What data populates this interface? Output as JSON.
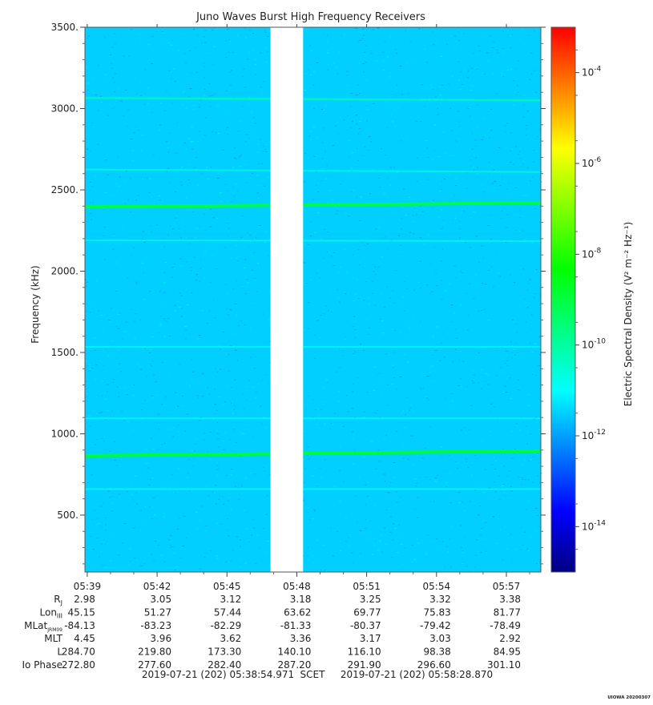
{
  "chart_data": {
    "type": "heatmap",
    "title": "Juno Waves Burst High Frequency Receivers",
    "ylabel": "Frequency (kHz)",
    "colorbar_label": "Electric Spectral Density (V² m⁻² Hz⁻¹)",
    "ylim": [
      150,
      3500
    ],
    "yticks": [
      500,
      1000,
      1500,
      2000,
      2500,
      3000,
      3500
    ],
    "ytick_labels": [
      "500.",
      "1000.",
      "1500.",
      "2000.",
      "2500.",
      "3000.",
      "3500."
    ],
    "xlim_minutes": [
      38.9,
      58.48
    ],
    "xticks_minutes": [
      39,
      42,
      45,
      48,
      51,
      54,
      57
    ],
    "data_gap_minutes": [
      46.87,
      48.27
    ],
    "background_level_log10": -11.5,
    "emission_lines": [
      {
        "freq_start": 865,
        "freq_end": 895,
        "log10_level": -8.8,
        "strength": "strong"
      },
      {
        "freq_start": 2395,
        "freq_end": 2420,
        "log10_level": -9.0,
        "strength": "strong"
      },
      {
        "freq_start": 3065,
        "freq_end": 3050,
        "log10_level": -10.2,
        "strength": "medium"
      },
      {
        "freq_start": 2625,
        "freq_end": 2610,
        "log10_level": -10.6,
        "strength": "weak"
      },
      {
        "freq_start": 2190,
        "freq_end": 2185,
        "log10_level": -10.8,
        "strength": "weak"
      },
      {
        "freq_start": 1535,
        "freq_end": 1535,
        "log10_level": -10.8,
        "strength": "weak"
      },
      {
        "freq_start": 1095,
        "freq_end": 1095,
        "log10_level": -11.0,
        "strength": "weak"
      },
      {
        "freq_start": 660,
        "freq_end": 660,
        "log10_level": -11.0,
        "strength": "weak"
      }
    ],
    "colorbar": {
      "log10_min": -15,
      "log10_max": -3,
      "ticks": [
        {
          "base": "10",
          "exp": "-4",
          "value": -4
        },
        {
          "base": "10",
          "exp": "-6",
          "value": -6
        },
        {
          "base": "10",
          "exp": "-8",
          "value": -8
        },
        {
          "base": "10",
          "exp": "-10",
          "value": -10
        },
        {
          "base": "10",
          "exp": "-12",
          "value": -12
        },
        {
          "base": "10",
          "exp": "-14",
          "value": -14
        }
      ],
      "colors": [
        "#000080",
        "#0000ff",
        "#0080ff",
        "#00ffff",
        "#00ff80",
        "#00ff00",
        "#80ff00",
        "#ffff00",
        "#ff8000",
        "#ff0000"
      ]
    },
    "ephemeris": {
      "time_labels": [
        "05:39",
        "05:42",
        "05:45",
        "05:48",
        "05:51",
        "05:54",
        "05:57"
      ],
      "rows": [
        {
          "label": "R",
          "sub": "J",
          "values": [
            "2.98",
            "3.05",
            "3.12",
            "3.18",
            "3.25",
            "3.32",
            "3.38"
          ]
        },
        {
          "label": "Lon",
          "sub": "III",
          "values": [
            "45.15",
            "51.27",
            "57.44",
            "63.62",
            "69.77",
            "75.83",
            "81.77"
          ]
        },
        {
          "label": "MLat",
          "sub": "JRM09",
          "values": [
            "-84.13",
            "-83.23",
            "-82.29",
            "-81.33",
            "-80.37",
            "-79.42",
            "-78.49"
          ]
        },
        {
          "label": "MLT",
          "sub": "",
          "values": [
            "4.45",
            "3.96",
            "3.62",
            "3.36",
            "3.17",
            "3.03",
            "2.92"
          ]
        },
        {
          "label": "L",
          "sub": "",
          "values": [
            "284.70",
            "219.80",
            "173.30",
            "140.10",
            "116.10",
            "98.38",
            "84.95"
          ]
        },
        {
          "label": "Io Phase",
          "sub": "",
          "values": [
            "272.80",
            "277.60",
            "282.40",
            "287.20",
            "291.90",
            "296.60",
            "301.10"
          ]
        }
      ]
    },
    "time_range": {
      "start": "2019-07-21 (202) 05:38:54.971",
      "label": "SCET",
      "end": "2019-07-21 (202) 05:58:28.870"
    },
    "footer_tag": "UIOWA 20200307"
  }
}
